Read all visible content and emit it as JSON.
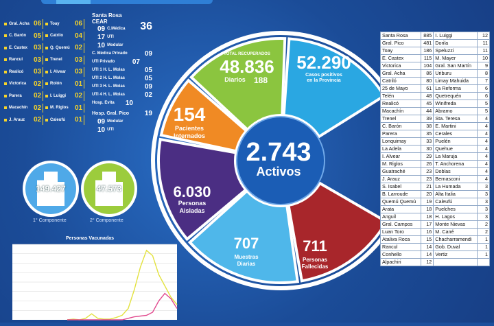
{
  "left_list_col1": [
    {
      "name": "Gral. Acha",
      "value": "06"
    },
    {
      "name": "C. Barón",
      "value": "05"
    },
    {
      "name": "E. Castex",
      "value": "03"
    },
    {
      "name": "Rancul",
      "value": "03"
    },
    {
      "name": "Realicó",
      "value": "03"
    },
    {
      "name": "Victorica",
      "value": "02"
    },
    {
      "name": "Parera",
      "value": "02"
    },
    {
      "name": "Macachín",
      "value": "02"
    },
    {
      "name": "J. Arauz",
      "value": "02"
    }
  ],
  "left_list_col2": [
    {
      "name": "Toay",
      "value": "06"
    },
    {
      "name": "Catrilo",
      "value": "04"
    },
    {
      "name": "Q. Quemú",
      "value": "02"
    },
    {
      "name": "Trenel",
      "value": "03"
    },
    {
      "name": "I. Alvear",
      "value": "03"
    },
    {
      "name": "Rolón",
      "value": "01"
    },
    {
      "name": "I. Luiggi",
      "value": "02"
    },
    {
      "name": "M. Riglos",
      "value": "01"
    },
    {
      "name": "Caleufú",
      "value": "01"
    }
  ],
  "hospitals": {
    "santa_rosa": "Santa Rosa",
    "cear": "CEAR",
    "santa_rosa_total": "36",
    "rows": [
      {
        "num": "09",
        "label": "C.Médica"
      },
      {
        "num": "17",
        "label": "UTI"
      },
      {
        "num": "10",
        "label": "Modular"
      }
    ],
    "c_medica_privado": "C. Médica Privado",
    "c_medica_privado_v": "09",
    "uti_privado": "UTI Privado",
    "uti_privado_v": "07",
    "hlm": [
      {
        "label": "UTI 1 H. L. Molas",
        "v": "05"
      },
      {
        "label": "UTI 2 H. L. Molas",
        "v": "05"
      },
      {
        "label": "UTI 3 H. L. Molas",
        "v": "09"
      },
      {
        "label": "UTI 4 H. L. Molas",
        "v": "02"
      }
    ],
    "evita": "Hosp. Evita",
    "evita_v": "10",
    "gral_pico": "Hosp. Gral. Pico",
    "gral_pico_v": "19",
    "gral_pico_rows": [
      {
        "num": "09",
        "label": "Modular"
      },
      {
        "num": "10",
        "label": "UTI"
      }
    ]
  },
  "components": {
    "first_value": "149.427",
    "first_label": "1° Componente",
    "second_value": "47.573",
    "second_label": "2° Componente"
  },
  "chart_data": {
    "type": "line",
    "title": "Personas Vacunadas",
    "series": [
      {
        "values": [
          0,
          1,
          0,
          2,
          8,
          2,
          1,
          1,
          3,
          6,
          15,
          40,
          70,
          92,
          85,
          60,
          45,
          30,
          20
        ]
      },
      {
        "values": [
          0,
          0,
          0,
          0,
          0,
          0,
          0,
          0,
          0,
          0,
          2,
          4,
          5,
          6,
          10,
          25,
          35,
          28,
          15
        ]
      }
    ],
    "colors": [
      "#e3e23f",
      "#e14b8f"
    ]
  },
  "wheel": {
    "recuperados_label": "TOTAL RECUPERADOS",
    "recuperados": "48.836",
    "diarios_label": "Diarios",
    "diarios": "188",
    "positivos": "52.290",
    "positivos_label1": "Casos positivos",
    "positivos_label2": "en la Provincia",
    "internados": "154",
    "internados_label1": "Pacientes",
    "internados_label2": "Internados",
    "activos": "2.743",
    "activos_label": "Activos",
    "aisladas": "6.030",
    "aisladas_label1": "Personas",
    "aisladas_label2": "Aisladas",
    "muestras": "707",
    "muestras_label1": "Muestras",
    "muestras_label2": "Diarias",
    "fallecidas": "711",
    "fallecidas_label1": "Personas",
    "fallecidas_label2": "Fallecidas",
    "colors": {
      "green": "#8bc53f",
      "blue": "#2aa7e2",
      "orange": "#f08a24",
      "purple": "#4b2e83",
      "lightblue": "#4fb7ea",
      "red": "#a8262b",
      "center": "#1b5db5"
    }
  },
  "localities_left": [
    [
      "Santa Rosa",
      "885"
    ],
    [
      "Gral. Pico",
      "481"
    ],
    [
      "Toay",
      "186"
    ],
    [
      "E. Castex",
      "115"
    ],
    [
      "Victorica",
      "104"
    ],
    [
      "Gral. Acha",
      "86"
    ],
    [
      "Catriló",
      "80"
    ],
    [
      "25 de Mayo",
      "61"
    ],
    [
      "Telén",
      "48"
    ],
    [
      "Realicó",
      "45"
    ],
    [
      "Macachín",
      "44"
    ],
    [
      "Trenel",
      "39"
    ],
    [
      "C. Barón",
      "38"
    ],
    [
      "Parera",
      "35"
    ],
    [
      "Lonquimay",
      "33"
    ],
    [
      "La Adela",
      "30"
    ],
    [
      "I. Alvear",
      "29"
    ],
    [
      "M. Riglos",
      "26"
    ],
    [
      "Guatraché",
      "23"
    ],
    [
      "J. Arauz",
      "23"
    ],
    [
      "S. Isabel",
      "21"
    ],
    [
      "B. Larroude",
      "20"
    ],
    [
      "Quemú Quemú",
      "19"
    ],
    [
      "Arata",
      "18"
    ],
    [
      "Anguil",
      "18"
    ],
    [
      "Gral. Campos",
      "17"
    ],
    [
      "Luan Toro",
      "16"
    ],
    [
      "Ataliva Roca",
      "15"
    ],
    [
      "Rancul",
      "14"
    ],
    [
      "Conhello",
      "14"
    ],
    [
      "Alpachiri",
      "12"
    ]
  ],
  "localities_right": [
    [
      "I. Luiggi",
      "12"
    ],
    [
      "Dorila",
      "11"
    ],
    [
      "Speluzzi",
      "11"
    ],
    [
      "M. Mayer",
      "10"
    ],
    [
      "Gral. San Martín",
      "9"
    ],
    [
      "Uriburu",
      "8"
    ],
    [
      "Limay Mahuida",
      "7"
    ],
    [
      "La Reforma",
      "6"
    ],
    [
      "Quetrequén",
      "6"
    ],
    [
      "Winifreda",
      "5"
    ],
    [
      "Abramo",
      "5"
    ],
    [
      "Sta. Teresa",
      "4"
    ],
    [
      "E. Martini",
      "4"
    ],
    [
      "Cerales",
      "4"
    ],
    [
      "Puelén",
      "4"
    ],
    [
      "Quehue",
      "4"
    ],
    [
      "La Maruja",
      "4"
    ],
    [
      "T. Anchorena",
      "4"
    ],
    [
      "Doblas",
      "4"
    ],
    [
      "Bernasconi",
      "4"
    ],
    [
      "La Humada",
      "3"
    ],
    [
      "Alta Italia",
      "3"
    ],
    [
      "Caleufú",
      "3"
    ],
    [
      "Puelches",
      "3"
    ],
    [
      "H. Lagos",
      "3"
    ],
    [
      "Monte Nievas",
      "2"
    ],
    [
      "M. Cané",
      "2"
    ],
    [
      "Chacharramendi",
      "1"
    ],
    [
      "Gob. Duval",
      "1"
    ],
    [
      "Vertiz",
      "1"
    ],
    [
      "",
      ""
    ]
  ]
}
